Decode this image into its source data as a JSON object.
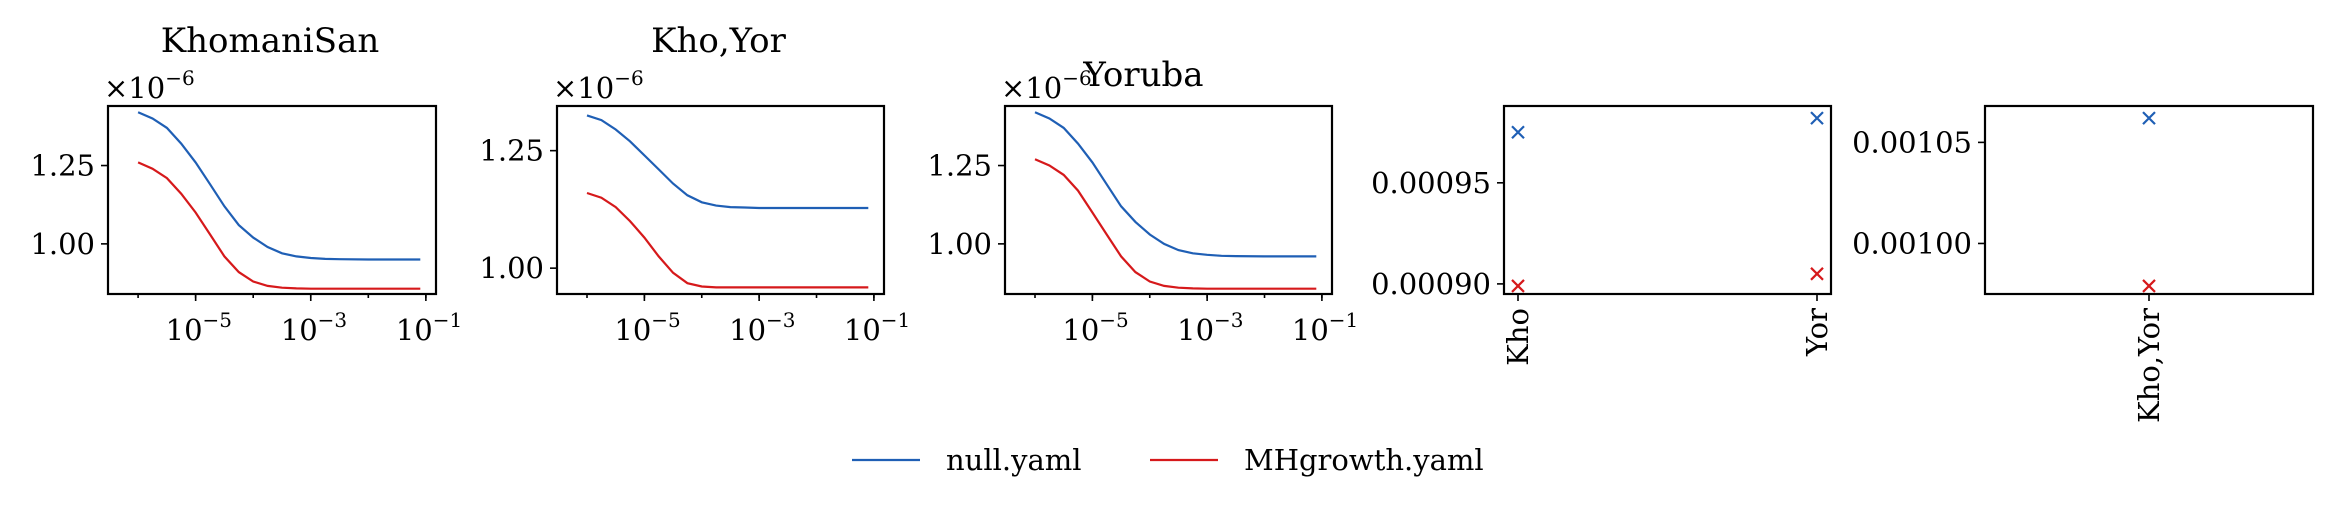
{
  "colors": {
    "null": "#1f5fb5",
    "mhgrowth": "#d6191b"
  },
  "legend": [
    {
      "name": "null.yaml",
      "color": "#1f5fb5"
    },
    {
      "name": "MHgrowth.yaml",
      "color": "#d6191b"
    }
  ],
  "chart_data": [
    {
      "type": "line",
      "title": "KhomaniSan",
      "xscale": "log",
      "xlim": [
        3e-07,
        0.15
      ],
      "ylim": [
        8.4e-07,
        1.44e-06
      ],
      "x_ticks": [
        1e-05,
        0.001,
        0.1
      ],
      "x_tick_labels": [
        "10",
        "10",
        "10"
      ],
      "x_tick_exponents": [
        "−5",
        "−3",
        "−1"
      ],
      "y_ticks": [
        1e-06,
        1.25e-06
      ],
      "y_tick_labels": [
        "1.00",
        "1.25"
      ],
      "y_offset_text": "×10",
      "y_offset_exponent": "−6",
      "x": [
        1e-06,
        1.78e-06,
        3.16e-06,
        5.62e-06,
        1e-05,
        1.78e-05,
        3.16e-05,
        5.62e-05,
        0.0001,
        0.000178,
        0.000316,
        0.000562,
        0.001,
        0.00178,
        0.00316,
        0.01,
        0.08
      ],
      "series": [
        {
          "name": "null.yaml",
          "values": [
            1.42e-06,
            1.4e-06,
            1.37e-06,
            1.32e-06,
            1.26e-06,
            1.19e-06,
            1.12e-06,
            1.06e-06,
            1.02e-06,
            9.9e-07,
            9.7e-07,
            9.6e-07,
            9.55e-07,
            9.52e-07,
            9.51e-07,
            9.5e-07,
            9.5e-07
          ]
        },
        {
          "name": "MHgrowth.yaml",
          "values": [
            1.26e-06,
            1.24e-06,
            1.21e-06,
            1.16e-06,
            1.1e-06,
            1.03e-06,
            9.6e-07,
            9.1e-07,
            8.8e-07,
            8.66e-07,
            8.6e-07,
            8.58e-07,
            8.57e-07,
            8.57e-07,
            8.57e-07,
            8.57e-07,
            8.57e-07
          ]
        }
      ]
    },
    {
      "type": "line",
      "title": "Kho,Yor",
      "xscale": "log",
      "xlim": [
        3e-07,
        0.15
      ],
      "ylim": [
        9.45e-07,
        1.345e-06
      ],
      "x_ticks": [
        1e-05,
        0.001,
        0.1
      ],
      "x_tick_labels": [
        "10",
        "10",
        "10"
      ],
      "x_tick_exponents": [
        "−5",
        "−3",
        "−1"
      ],
      "y_ticks": [
        1e-06,
        1.25e-06
      ],
      "y_tick_labels": [
        "1.00",
        "1.25"
      ],
      "y_offset_text": "×10",
      "y_offset_exponent": "−6",
      "x": [
        1e-06,
        1.78e-06,
        3.16e-06,
        5.62e-06,
        1e-05,
        1.78e-05,
        3.16e-05,
        5.62e-05,
        0.0001,
        0.000178,
        0.000316,
        0.000562,
        0.001,
        0.00178,
        0.00316,
        0.01,
        0.08
      ],
      "series": [
        {
          "name": "null.yaml",
          "values": [
            1.325e-06,
            1.315e-06,
            1.295e-06,
            1.27e-06,
            1.24e-06,
            1.21e-06,
            1.18e-06,
            1.155e-06,
            1.14e-06,
            1.133e-06,
            1.13e-06,
            1.129e-06,
            1.128e-06,
            1.128e-06,
            1.128e-06,
            1.128e-06,
            1.128e-06
          ]
        },
        {
          "name": "MHgrowth.yaml",
          "values": [
            1.16e-06,
            1.15e-06,
            1.13e-06,
            1.1e-06,
            1.065e-06,
            1.025e-06,
            9.9e-07,
            9.68e-07,
            9.61e-07,
            9.59e-07,
            9.59e-07,
            9.59e-07,
            9.59e-07,
            9.59e-07,
            9.59e-07,
            9.59e-07,
            9.59e-07
          ]
        }
      ]
    },
    {
      "type": "line",
      "title": "Yoruba",
      "xscale": "log",
      "xlim": [
        3e-07,
        0.15
      ],
      "ylim": [
        8.4e-07,
        1.44e-06
      ],
      "x_ticks": [
        1e-05,
        0.001,
        0.1
      ],
      "x_tick_labels": [
        "10",
        "10",
        "10"
      ],
      "x_tick_exponents": [
        "−5",
        "−3",
        "−1"
      ],
      "y_ticks": [
        1e-06,
        1.25e-06
      ],
      "y_tick_labels": [
        "1.00",
        "1.25"
      ],
      "y_offset_text": "×10",
      "y_offset_exponent": "−6",
      "x": [
        1e-06,
        1.78e-06,
        3.16e-06,
        5.62e-06,
        1e-05,
        1.78e-05,
        3.16e-05,
        5.62e-05,
        0.0001,
        0.000178,
        0.000316,
        0.000562,
        0.001,
        0.00178,
        0.00316,
        0.01,
        0.08
      ],
      "series": [
        {
          "name": "null.yaml",
          "values": [
            1.42e-06,
            1.4e-06,
            1.37e-06,
            1.32e-06,
            1.26e-06,
            1.19e-06,
            1.12e-06,
            1.07e-06,
            1.03e-06,
            1e-06,
            9.8e-07,
            9.7e-07,
            9.65e-07,
            9.62e-07,
            9.61e-07,
            9.6e-07,
            9.6e-07
          ]
        },
        {
          "name": "MHgrowth.yaml",
          "values": [
            1.27e-06,
            1.25e-06,
            1.22e-06,
            1.17e-06,
            1.1e-06,
            1.03e-06,
            9.6e-07,
            9.1e-07,
            8.8e-07,
            8.66e-07,
            8.6e-07,
            8.58e-07,
            8.57e-07,
            8.57e-07,
            8.57e-07,
            8.57e-07,
            8.57e-07
          ]
        }
      ]
    },
    {
      "type": "scatter",
      "title": "",
      "marker": "x",
      "categories": [
        "Kho",
        "Yor"
      ],
      "ylim": [
        0.000895,
        0.000988
      ],
      "y_ticks": [
        0.0009,
        0.00095
      ],
      "y_tick_labels": [
        "0.00090",
        "0.00095"
      ],
      "series": [
        {
          "name": "null.yaml",
          "values": [
            0.000975,
            0.000982
          ]
        },
        {
          "name": "MHgrowth.yaml",
          "values": [
            0.000899,
            0.000905
          ]
        }
      ]
    },
    {
      "type": "scatter",
      "title": "",
      "marker": "x",
      "categories": [
        "Kho,Yor"
      ],
      "ylim": [
        0.000975,
        0.001068
      ],
      "y_ticks": [
        0.001,
        0.00105
      ],
      "y_tick_labels": [
        "0.00100",
        "0.00105"
      ],
      "series": [
        {
          "name": "null.yaml",
          "values": [
            0.001062
          ]
        },
        {
          "name": "MHgrowth.yaml",
          "values": [
            0.000979
          ]
        }
      ]
    }
  ]
}
